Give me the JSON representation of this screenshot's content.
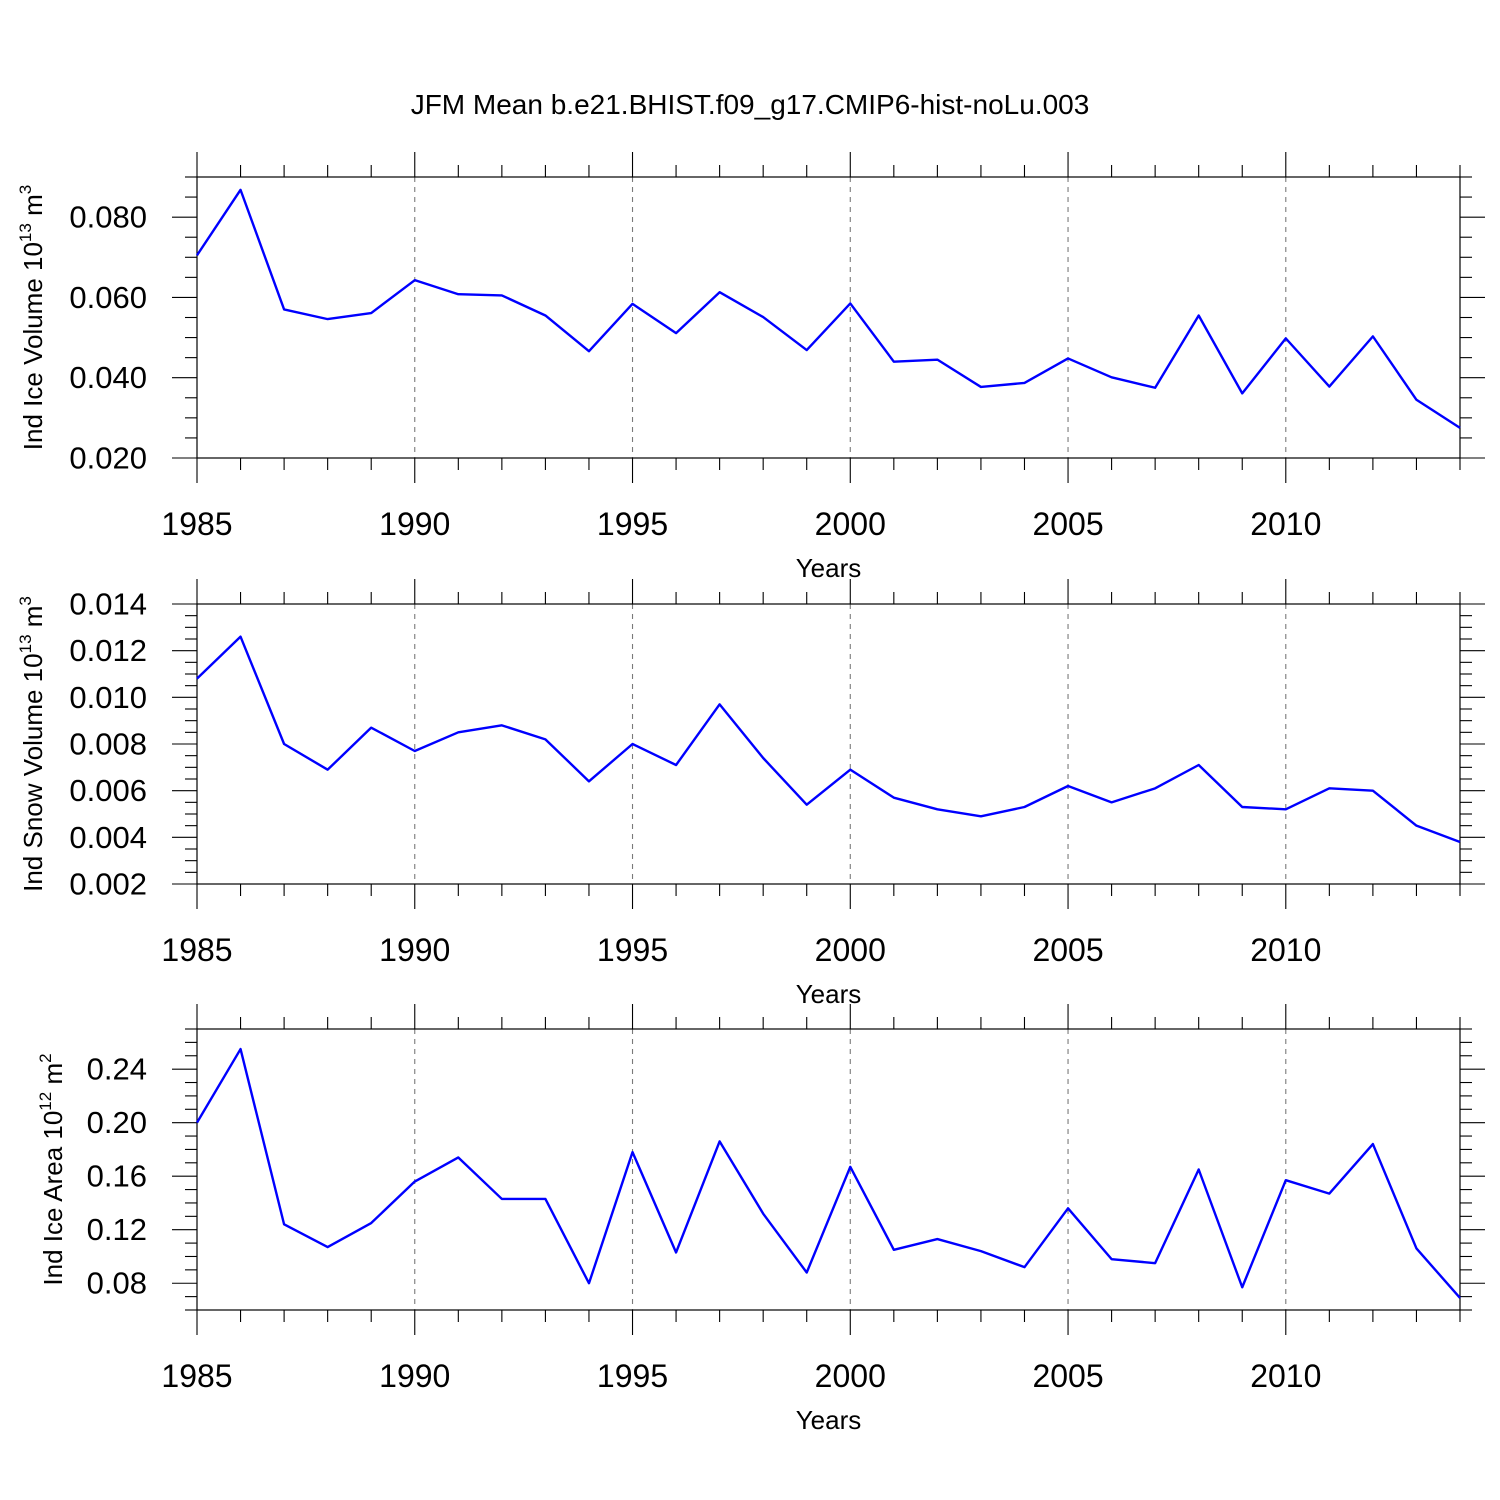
{
  "title": "JFM Mean b.e21.BHIST.f09_g17.CMIP6-hist-noLu.003",
  "chart_data": [
    {
      "type": "line",
      "xlabel": "Years",
      "ylabel": {
        "main": "Ind Ice Volume 10",
        "exponent": "13",
        "unit": " m",
        "unit_exponent": "3"
      },
      "xlim": [
        1985,
        2014
      ],
      "ylim": [
        0.02,
        0.09
      ],
      "xticks": [
        1985,
        1990,
        1995,
        2000,
        2005,
        2010
      ],
      "xtick_labels": [
        "1985",
        "1990",
        "1995",
        "2000",
        "2005",
        "2010"
      ],
      "yticks": [
        0.02,
        0.04,
        0.06,
        0.08
      ],
      "ytick_labels": [
        "0.020",
        "0.040",
        "0.060",
        "0.080"
      ],
      "minor_y_step": 0.005,
      "grid": "vertical-dashed",
      "color": "#0000ff",
      "series": [
        {
          "name": "Ind Ice Volume",
          "x": [
            1985,
            1986,
            1987,
            1988,
            1989,
            1990,
            1991,
            1992,
            1993,
            1994,
            1995,
            1996,
            1997,
            1998,
            1999,
            2000,
            2001,
            2002,
            2003,
            2004,
            2005,
            2006,
            2007,
            2008,
            2009,
            2010,
            2011,
            2012,
            2013,
            2014
          ],
          "values": [
            0.0705,
            0.0868,
            0.057,
            0.0546,
            0.0561,
            0.0643,
            0.0608,
            0.0605,
            0.0555,
            0.0466,
            0.0584,
            0.0511,
            0.0613,
            0.0551,
            0.0469,
            0.0585,
            0.044,
            0.0445,
            0.0377,
            0.0387,
            0.0448,
            0.0401,
            0.0375,
            0.0555,
            0.0361,
            0.0498,
            0.0378,
            0.0503,
            0.0345,
            0.0275
          ]
        }
      ]
    },
    {
      "type": "line",
      "xlabel": "Years",
      "ylabel": {
        "main": "Ind Snow Volume 10",
        "exponent": "13",
        "unit": " m",
        "unit_exponent": "3"
      },
      "xlim": [
        1985,
        2014
      ],
      "ylim": [
        0.002,
        0.014
      ],
      "xticks": [
        1985,
        1990,
        1995,
        2000,
        2005,
        2010
      ],
      "xtick_labels": [
        "1985",
        "1990",
        "1995",
        "2000",
        "2005",
        "2010"
      ],
      "yticks": [
        0.002,
        0.004,
        0.006,
        0.008,
        0.01,
        0.012,
        0.014
      ],
      "ytick_labels": [
        "0.002",
        "0.004",
        "0.006",
        "0.008",
        "0.010",
        "0.012",
        "0.014"
      ],
      "minor_y_step": 0.0005,
      "grid": "vertical-dashed",
      "color": "#0000ff",
      "series": [
        {
          "name": "Ind Snow Volume",
          "x": [
            1985,
            1986,
            1987,
            1988,
            1989,
            1990,
            1991,
            1992,
            1993,
            1994,
            1995,
            1996,
            1997,
            1998,
            1999,
            2000,
            2001,
            2002,
            2003,
            2004,
            2005,
            2006,
            2007,
            2008,
            2009,
            2010,
            2011,
            2012,
            2013,
            2014
          ],
          "values": [
            0.0108,
            0.0126,
            0.008,
            0.0069,
            0.0087,
            0.0077,
            0.0085,
            0.0088,
            0.0082,
            0.0064,
            0.008,
            0.0071,
            0.0097,
            0.0074,
            0.0054,
            0.0069,
            0.0057,
            0.0052,
            0.0049,
            0.0053,
            0.0062,
            0.0055,
            0.0061,
            0.0071,
            0.0053,
            0.0052,
            0.0061,
            0.006,
            0.0045,
            0.0038
          ]
        }
      ]
    },
    {
      "type": "line",
      "xlabel": "Years",
      "ylabel": {
        "main": "Ind Ice Area 10",
        "exponent": "12",
        "unit": " m",
        "unit_exponent": "2"
      },
      "xlim": [
        1985,
        2014
      ],
      "ylim": [
        0.06,
        0.27
      ],
      "xticks": [
        1985,
        1990,
        1995,
        2000,
        2005,
        2010
      ],
      "xtick_labels": [
        "1985",
        "1990",
        "1995",
        "2000",
        "2005",
        "2010"
      ],
      "yticks": [
        0.08,
        0.12,
        0.16,
        0.2,
        0.24
      ],
      "ytick_labels": [
        "0.08",
        "0.12",
        "0.16",
        "0.20",
        "0.24"
      ],
      "minor_y_step": 0.01,
      "grid": "vertical-dashed",
      "color": "#0000ff",
      "series": [
        {
          "name": "Ind Ice Area",
          "x": [
            1985,
            1986,
            1987,
            1988,
            1989,
            1990,
            1991,
            1992,
            1993,
            1994,
            1995,
            1996,
            1997,
            1998,
            1999,
            2000,
            2001,
            2002,
            2003,
            2004,
            2005,
            2006,
            2007,
            2008,
            2009,
            2010,
            2011,
            2012,
            2013,
            2014
          ],
          "values": [
            0.2,
            0.255,
            0.124,
            0.107,
            0.125,
            0.156,
            0.174,
            0.143,
            0.143,
            0.08,
            0.178,
            0.103,
            0.186,
            0.132,
            0.088,
            0.167,
            0.105,
            0.113,
            0.104,
            0.092,
            0.136,
            0.098,
            0.095,
            0.165,
            0.077,
            0.157,
            0.147,
            0.184,
            0.106,
            0.069
          ]
        }
      ]
    }
  ]
}
